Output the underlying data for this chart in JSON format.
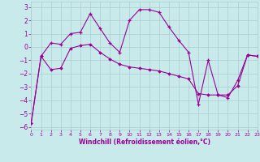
{
  "xlabel": "Windchill (Refroidissement éolien,°C)",
  "bg_color": "#c8eaea",
  "grid_color": "#aacccc",
  "line_color": "#990099",
  "xlim": [
    0,
    23
  ],
  "ylim": [
    -6.2,
    3.4
  ],
  "yticks": [
    -6,
    -5,
    -4,
    -3,
    -2,
    -1,
    0,
    1,
    2,
    3
  ],
  "xticks": [
    0,
    1,
    2,
    3,
    4,
    5,
    6,
    7,
    8,
    9,
    10,
    11,
    12,
    13,
    14,
    15,
    16,
    17,
    18,
    19,
    20,
    21,
    22,
    23
  ],
  "series1_x": [
    0,
    1,
    2,
    3,
    4,
    5,
    6,
    7,
    8,
    9,
    10,
    11,
    12,
    13,
    14,
    15,
    16,
    17,
    18,
    19,
    20,
    21,
    22,
    23
  ],
  "series1_y": [
    -5.7,
    -0.7,
    0.3,
    0.2,
    1.0,
    1.1,
    2.5,
    1.4,
    0.3,
    -0.4,
    2.0,
    2.8,
    2.8,
    2.6,
    1.5,
    0.5,
    -0.4,
    -4.3,
    -1.0,
    -3.6,
    -3.8,
    -2.5,
    -0.6,
    -0.7
  ],
  "series2_x": [
    0,
    1,
    2,
    3,
    4,
    5,
    6,
    7,
    8,
    9,
    10,
    11,
    12,
    13,
    14,
    15,
    16,
    17,
    18,
    19,
    20,
    21,
    22,
    23
  ],
  "series2_y": [
    -5.7,
    -0.7,
    -1.7,
    -1.6,
    -0.1,
    0.1,
    0.2,
    -0.4,
    -0.9,
    -1.3,
    -1.5,
    -1.6,
    -1.7,
    -1.8,
    -2.0,
    -2.2,
    -2.4,
    -3.5,
    -3.6,
    -3.6,
    -3.6,
    -2.9,
    -0.6,
    -0.7
  ],
  "tick_fontsize": 5.5,
  "xlabel_fontsize": 5.5
}
